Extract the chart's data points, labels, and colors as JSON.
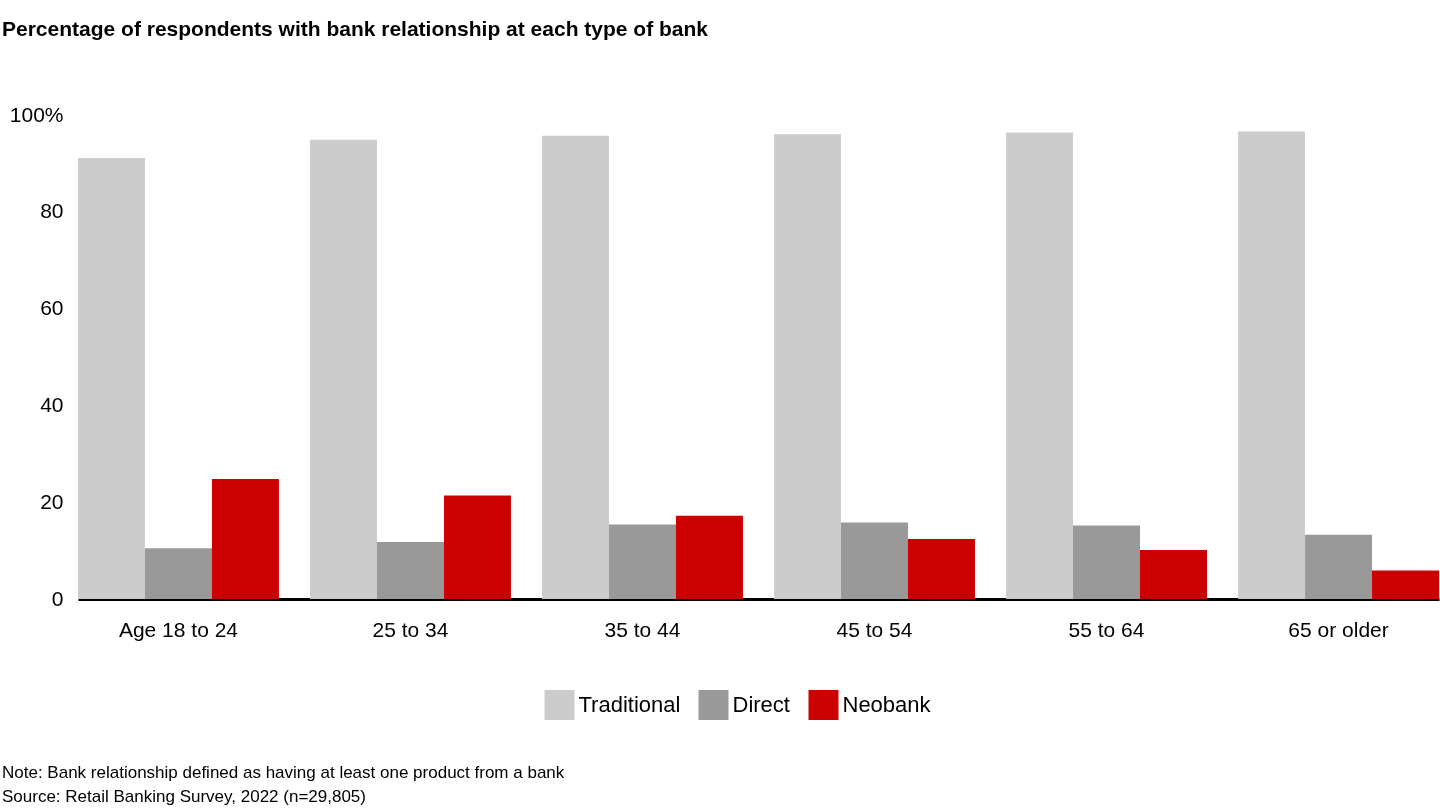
{
  "chart_data": {
    "type": "bar",
    "title": "Percentage of respondents with bank relationship at each type of bank",
    "categories": [
      "Age 18 to 24",
      "25 to 34",
      "35 to 44",
      "45 to 54",
      "55 to 64",
      "65 or older"
    ],
    "series": [
      {
        "name": "Traditional",
        "color": "#cccccc",
        "values": [
          91.1,
          94.9,
          95.7,
          96.0,
          96.4,
          96.6
        ]
      },
      {
        "name": "Direct",
        "color": "#999999",
        "values": [
          10.5,
          11.8,
          15.4,
          15.8,
          15.2,
          13.3
        ]
      },
      {
        "name": "Neobank",
        "color": "#cc0000",
        "values": [
          24.8,
          21.4,
          17.2,
          12.4,
          10.1,
          5.9
        ]
      }
    ],
    "ylim": [
      0,
      100
    ],
    "yticks": [
      0,
      20,
      40,
      60,
      80,
      {
        "value": 100,
        "label": "100%"
      }
    ],
    "legend": "bottom",
    "annotations": [
      "Note: Bank relationship defined as having at least one product from a bank",
      "Source: Retail Banking Survey, 2022 (n=29,805)"
    ]
  }
}
